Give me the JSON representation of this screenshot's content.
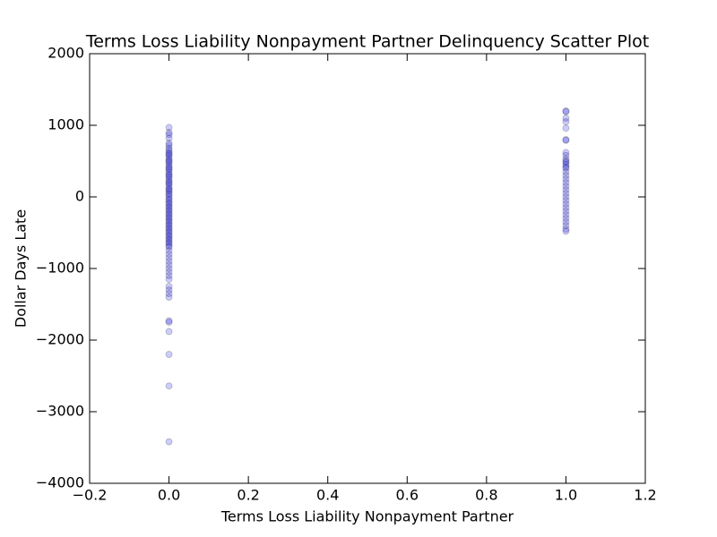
{
  "chart_data": {
    "type": "scatter",
    "title": "Terms Loss Liability Nonpayment Partner Delinquency Scatter Plot",
    "x_label": "Terms Loss Liability Nonpayment Partner",
    "y_label": "Dollar Days Late",
    "color": "#0000ff",
    "marker_alpha": 0.2,
    "x": [
      0,
      0,
      0,
      0,
      0,
      0,
      0,
      0,
      0,
      0,
      0,
      0,
      0,
      0,
      0,
      0,
      0,
      0,
      0,
      0,
      0,
      0,
      0,
      0,
      0,
      0,
      0,
      0,
      0,
      0,
      0,
      0,
      0,
      0,
      0,
      0,
      0,
      0,
      0,
      0,
      0,
      0,
      0,
      0,
      0,
      0,
      0,
      0,
      0,
      0,
      0,
      0,
      0,
      0,
      0,
      0,
      0,
      0,
      0,
      0,
      0,
      0,
      0,
      0,
      0,
      0,
      0,
      0,
      0,
      0,
      0,
      0,
      0,
      0,
      0,
      0,
      0,
      0,
      0,
      0,
      0,
      1,
      1,
      1,
      1,
      1,
      1,
      1,
      1,
      1,
      1,
      1,
      1,
      1,
      1,
      1,
      1,
      1,
      1,
      1,
      1,
      1,
      1,
      1,
      1,
      1,
      1,
      1,
      1,
      1,
      1,
      1,
      1,
      1
    ],
    "values": [
      970,
      900,
      870,
      820,
      750,
      720,
      680,
      650,
      620,
      600,
      580,
      550,
      520,
      500,
      480,
      450,
      420,
      400,
      380,
      350,
      320,
      300,
      280,
      250,
      220,
      200,
      180,
      150,
      120,
      100,
      80,
      50,
      30,
      0,
      -30,
      -50,
      -80,
      -100,
      -130,
      -150,
      -180,
      -200,
      -230,
      -250,
      -280,
      -300,
      -330,
      -350,
      -380,
      -400,
      -430,
      -450,
      -480,
      -500,
      -530,
      -550,
      -580,
      -600,
      -630,
      -650,
      -680,
      -700,
      -750,
      -800,
      -850,
      -900,
      -950,
      -1000,
      -1050,
      -1100,
      -1150,
      -1250,
      -1300,
      -1350,
      -1400,
      -1730,
      -1750,
      -1880,
      -2200,
      -2640,
      -3420,
      1200,
      1190,
      1100,
      1050,
      960,
      800,
      790,
      620,
      580,
      530,
      500,
      480,
      450,
      420,
      400,
      350,
      300,
      250,
      200,
      150,
      100,
      50,
      0,
      -50,
      -100,
      -150,
      -200,
      -250,
      -300,
      -350,
      -400,
      -450,
      -480
    ],
    "xlim": [
      -0.2,
      1.2
    ],
    "xticks": [
      {
        "value": -0.2,
        "label": "−0.2"
      },
      {
        "value": 0,
        "label": "0.0"
      },
      0.2,
      0.4,
      0.6,
      0.8,
      {
        "value": 1,
        "label": "1.0"
      },
      1.2
    ],
    "ylim": [
      -4000,
      2000
    ],
    "yticks": [
      {
        "value": -4000,
        "label": "−4000"
      },
      {
        "value": -3000,
        "label": "−3000"
      },
      {
        "value": -2000,
        "label": "−2000"
      },
      {
        "value": -1000,
        "label": "−1000"
      },
      0,
      1000,
      2000
    ],
    "grid": false
  }
}
